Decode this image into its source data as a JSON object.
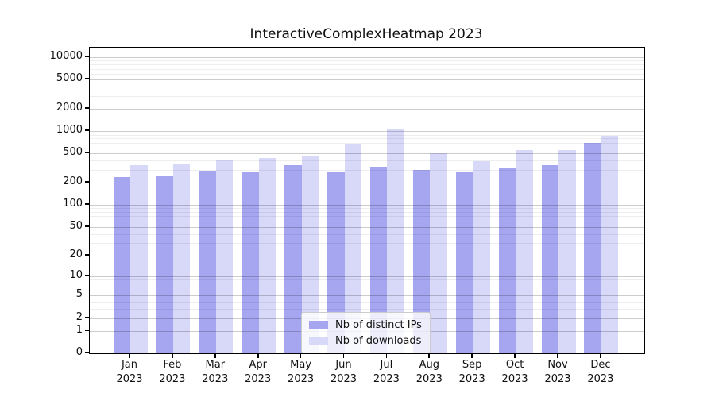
{
  "title": "InteractiveComplexHeatmap 2023",
  "chart_data": {
    "type": "bar",
    "title": "InteractiveComplexHeatmap 2023",
    "categories": [
      "Jan",
      "Feb",
      "Mar",
      "Apr",
      "May",
      "Jun",
      "Jul",
      "Aug",
      "Sep",
      "Oct",
      "Nov",
      "Dec"
    ],
    "year_label": "2023",
    "series": [
      {
        "name": "Nb of distinct IPs",
        "color": "#a5a5f0",
        "values": [
          240,
          245,
          290,
          281,
          352,
          276,
          333,
          300,
          276,
          327,
          352,
          690
        ]
      },
      {
        "name": "Nb of downloads",
        "color": "#d8d8f8",
        "values": [
          345,
          362,
          410,
          430,
          463,
          672,
          1060,
          503,
          390,
          561,
          561,
          877
        ]
      }
    ],
    "xlabel": "",
    "ylabel": "",
    "yscale": "log10(1+x)",
    "ylim": [
      0,
      13500
    ],
    "yticks": [
      0,
      1,
      2,
      5,
      10,
      20,
      50,
      100,
      200,
      500,
      1000,
      2000,
      5000,
      10000
    ],
    "ytick_labels": [
      "0",
      "1",
      "2",
      "5",
      "10",
      "20",
      "50",
      "100",
      "200",
      "500",
      "1000",
      "2000",
      "5000",
      "10000"
    ],
    "grid": "horizontal major + log minor gridlines",
    "legend_position": "lower center inside plot"
  },
  "legend": {
    "items": [
      {
        "label": "Nb of distinct IPs"
      },
      {
        "label": "Nb of downloads"
      }
    ]
  },
  "colors": {
    "distinct_ips": "#a5a5f0",
    "downloads": "#d8d8f8",
    "spine": "#000000",
    "background": "#ffffff"
  }
}
